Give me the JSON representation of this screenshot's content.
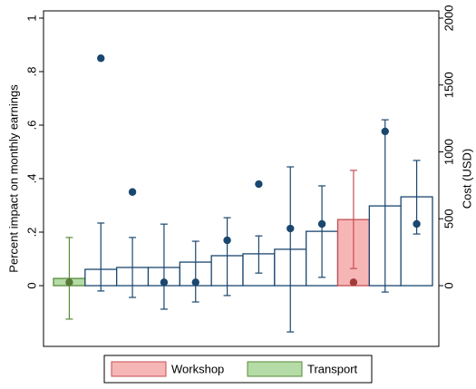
{
  "chart_data": {
    "type": "bar",
    "ylabel": "Percent impact on monthly earnings",
    "y2label": "Cost (USD)",
    "categories": [
      null,
      null,
      null,
      null,
      null,
      null,
      null,
      null,
      null,
      null,
      null,
      null
    ],
    "values": [
      0.027,
      0.061,
      0.068,
      0.068,
      0.088,
      0.112,
      0.119,
      0.136,
      0.203,
      0.247,
      0.298,
      0.332
    ],
    "lower": [
      -0.125,
      -0.02,
      -0.044,
      -0.088,
      -0.061,
      -0.037,
      0.047,
      -0.173,
      0.031,
      0.064,
      -0.024,
      0.193
    ],
    "upper": [
      0.18,
      0.234,
      0.18,
      0.23,
      0.166,
      0.254,
      0.186,
      0.444,
      0.373,
      0.431,
      0.62,
      0.468
    ],
    "cost": [
      25,
      1700,
      700,
      25,
      25,
      339,
      759,
      427,
      461,
      25,
      1153,
      461
    ],
    "colors": [
      "#b5dba6",
      "#ffffff",
      "#ffffff",
      "#ffffff",
      "#ffffff",
      "#ffffff",
      "#ffffff",
      "#ffffff",
      "#ffffff",
      "#f7b6b6",
      "#ffffff",
      "#ffffff"
    ],
    "edge_colors": [
      "#5a8a3a",
      "#1a476f",
      "#1a476f",
      "#1a476f",
      "#1a476f",
      "#1a476f",
      "#1a476f",
      "#1a476f",
      "#1a476f",
      "#c44e52",
      "#1a476f",
      "#1a476f"
    ],
    "dot_colors": [
      "#5a7a3a",
      "#1a476f",
      "#1a476f",
      "#1a476f",
      "#1a476f",
      "#1a476f",
      "#1a476f",
      "#1a476f",
      "#1a476f",
      "#a33a3a",
      "#1a476f",
      "#1a476f"
    ],
    "legend": [
      {
        "name": "Workshop",
        "color": "#f7b6b6",
        "edge": "#c44e52"
      },
      {
        "name": "Transport",
        "color": "#b5dba6",
        "edge": "#5a8a3a"
      }
    ],
    "ylim": [
      -0.227,
      1.027
    ],
    "yticks": [
      0,
      {
        "value": 0.2,
        "label": ".2"
      },
      {
        "value": 0.4,
        "label": ".4"
      },
      {
        "value": 0.6,
        "label": ".6"
      },
      {
        "value": 0.8,
        "label": ".8"
      },
      1
    ],
    "y2lim": [
      -454,
      2054
    ],
    "y2ticks": [
      0,
      500,
      1000,
      1500,
      2000
    ]
  }
}
